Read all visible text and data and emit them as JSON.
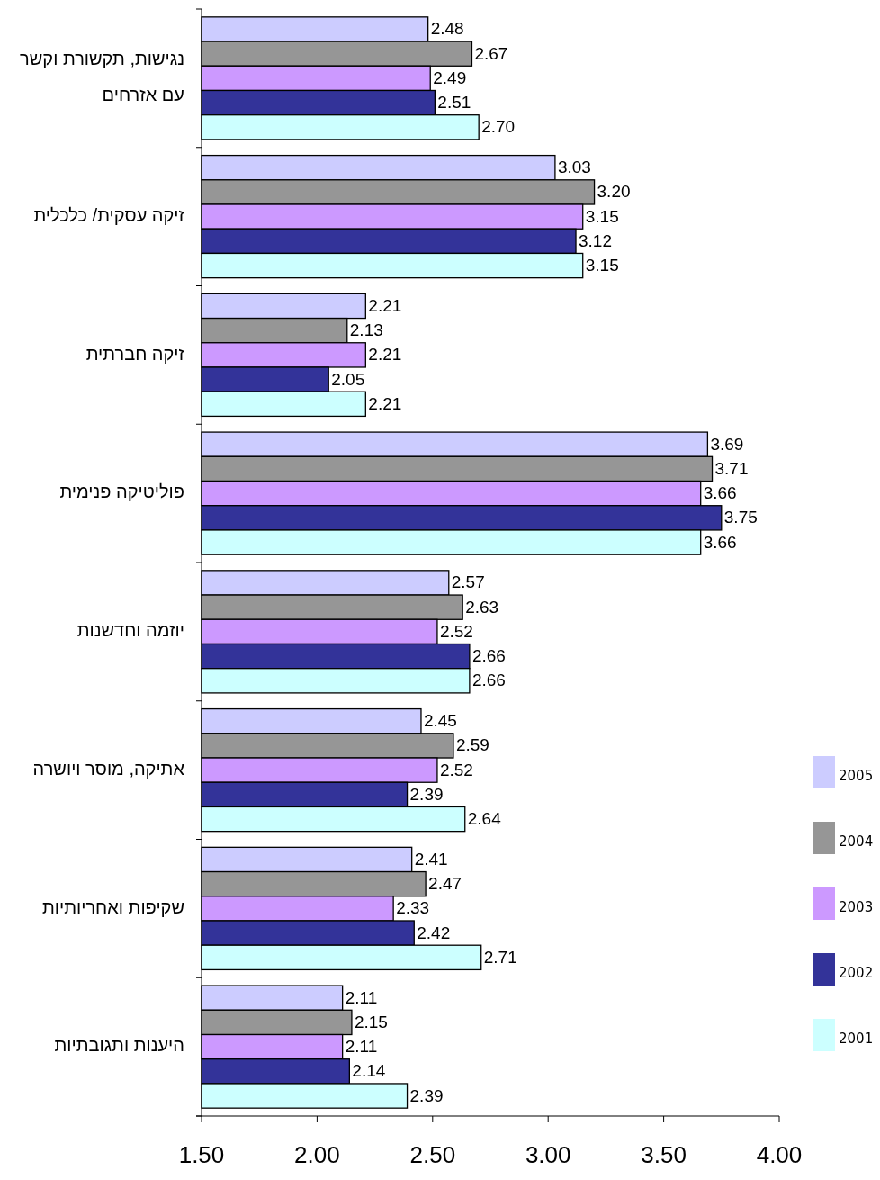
{
  "chart_data": {
    "type": "bar",
    "orientation": "horizontal",
    "categories": [
      "נגישות, תקשורת וקשר עם אזרחים",
      "זיקה עסקית/ כלכלית",
      "זיקה חברתית",
      "פוליטיקה פנימית",
      "יוזמה וחדשנות",
      "אתיקה, מוסר ויושרה",
      "שקיפות ואחריותיות",
      "היענות ותגובתיות"
    ],
    "series": [
      {
        "name": "2005",
        "color": "#ccccff",
        "values": [
          2.48,
          3.03,
          2.21,
          3.69,
          2.57,
          2.45,
          2.41,
          2.11
        ],
        "value_labels": [
          "2.48",
          "3.03",
          "2.21",
          "3.69",
          "2.57",
          "2.45",
          "2.41",
          "2.11"
        ]
      },
      {
        "name": "2004",
        "color": "#969696",
        "values": [
          2.67,
          3.2,
          2.13,
          3.71,
          2.63,
          2.59,
          2.47,
          2.15
        ],
        "value_labels": [
          "2.67",
          "3.20",
          "2.13",
          "3.71",
          "2.63",
          "2.59",
          "2.47",
          "2.15"
        ]
      },
      {
        "name": "2003",
        "color": "#cc99ff",
        "values": [
          2.49,
          3.15,
          2.21,
          3.66,
          2.52,
          2.52,
          2.33,
          2.11
        ],
        "value_labels": [
          "2.49",
          "3.15",
          "2.21",
          "3.66",
          "2.52",
          "2.52",
          "2.33",
          "2.11"
        ]
      },
      {
        "name": "2002",
        "color": "#333399",
        "values": [
          2.51,
          3.12,
          2.05,
          3.75,
          2.66,
          2.39,
          2.42,
          2.14
        ],
        "value_labels": [
          "2.51",
          "3.12",
          "2.05",
          "3.75",
          "2.66",
          "2.39",
          "2.42",
          "2.14"
        ]
      },
      {
        "name": "2001",
        "color": "#ccffff",
        "values": [
          2.7,
          3.15,
          2.21,
          3.66,
          2.66,
          2.64,
          2.71,
          2.39
        ],
        "value_labels": [
          "2.70",
          "3.15",
          "2.21",
          "3.66",
          "2.66",
          "2.64",
          "2.71",
          "2.39"
        ]
      }
    ],
    "xlim": [
      1.5,
      4
    ],
    "xticks": [
      {
        "value": 1.5,
        "label": "1.50"
      },
      {
        "value": 2,
        "label": "2.00"
      },
      {
        "value": 2.5,
        "label": "2.50"
      },
      {
        "value": 3,
        "label": "3.00"
      },
      {
        "value": 3.5,
        "label": "3.50"
      },
      {
        "value": 4,
        "label": "4.00"
      }
    ],
    "legend": "right"
  }
}
